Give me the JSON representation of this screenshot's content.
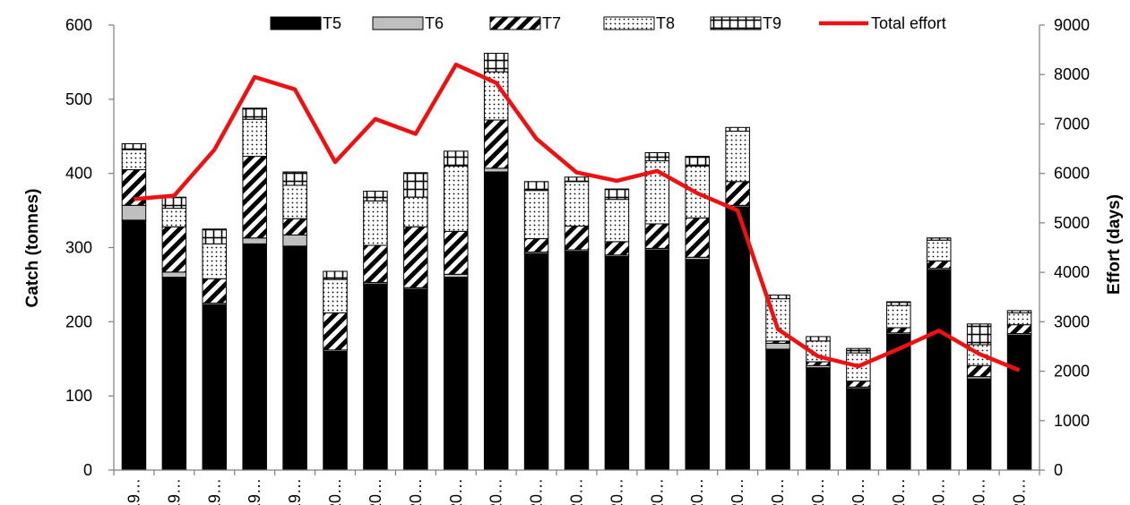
{
  "chart_data": {
    "type": "bar",
    "subtype": "stacked bar with line on secondary axis",
    "categories": [
      "19…",
      "19…",
      "19…",
      "19…",
      "19…",
      "20…",
      "20…",
      "20…",
      "20…",
      "20…",
      "20…",
      "20…",
      "20…",
      "20…",
      "20…",
      "20…",
      "20…",
      "20…",
      "20…",
      "20…",
      "20…",
      "20…",
      "20…"
    ],
    "series": [
      {
        "name": "T5",
        "kind": "bar",
        "axis": "left",
        "fill": "solid-black",
        "values": [
          337,
          260,
          223,
          305,
          302,
          160,
          251,
          244,
          260,
          402,
          292,
          295,
          288,
          297,
          284,
          355,
          163,
          138,
          110,
          183,
          270,
          123,
          182
        ]
      },
      {
        "name": "T6",
        "kind": "bar",
        "axis": "left",
        "fill": "solid-gray",
        "values": [
          20,
          7,
          2,
          8,
          15,
          2,
          2,
          2,
          4,
          5,
          2,
          2,
          2,
          2,
          3,
          2,
          8,
          3,
          2,
          2,
          2,
          3,
          2
        ]
      },
      {
        "name": "T7",
        "kind": "bar",
        "axis": "left",
        "fill": "diagonal-stripes",
        "values": [
          48,
          61,
          33,
          110,
          22,
          50,
          50,
          82,
          58,
          65,
          18,
          32,
          18,
          33,
          53,
          32,
          3,
          5,
          8,
          7,
          10,
          15,
          12
        ]
      },
      {
        "name": "T8",
        "kind": "bar",
        "axis": "left",
        "fill": "dots",
        "values": [
          27,
          25,
          47,
          50,
          45,
          45,
          60,
          40,
          88,
          65,
          65,
          60,
          57,
          85,
          70,
          68,
          57,
          28,
          38,
          30,
          28,
          28,
          16
        ]
      },
      {
        "name": "T9",
        "kind": "bar",
        "axis": "left",
        "fill": "grid",
        "values": [
          8,
          15,
          20,
          15,
          18,
          11,
          13,
          33,
          20,
          25,
          12,
          6,
          14,
          11,
          13,
          5,
          5,
          6,
          6,
          5,
          3,
          28,
          3
        ]
      },
      {
        "name": "Total effort",
        "kind": "line",
        "axis": "right",
        "color": "#ee1111",
        "values": [
          5480,
          5550,
          6480,
          7950,
          7700,
          6230,
          7100,
          6800,
          8200,
          7830,
          6700,
          6020,
          5850,
          6050,
          5600,
          5250,
          2850,
          2300,
          2100,
          2450,
          2820,
          2350,
          2020
        ]
      }
    ],
    "ylabel": "Catch (tonnes)",
    "ylim": [
      0,
      600
    ],
    "yticks": [
      0,
      100,
      200,
      300,
      400,
      500,
      600
    ],
    "y2label": "Effort (days)",
    "y2lim": [
      0,
      9000
    ],
    "y2ticks": [
      0,
      1000,
      2000,
      3000,
      4000,
      5000,
      6000,
      7000,
      8000,
      9000
    ],
    "legend_position": "top",
    "grid": false
  }
}
